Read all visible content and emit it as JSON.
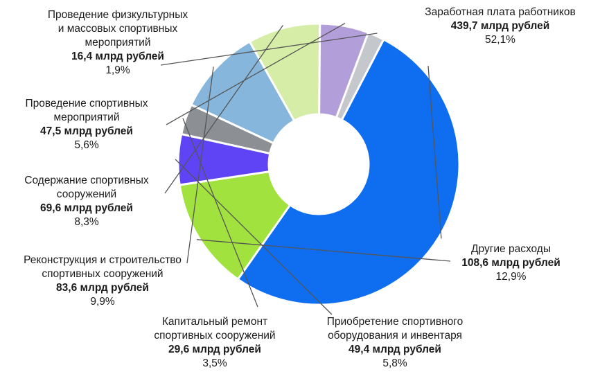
{
  "chart_data": {
    "type": "pie",
    "style": "donut",
    "start_angle_deg": -62.5,
    "direction": "clockwise",
    "slices": [
      {
        "name": "Заработная плата работников",
        "value": "439,7 млрд рублей",
        "percent": "52,1%",
        "pct_num": 52.1,
        "color": "#0f6ef0"
      },
      {
        "name": "Другие расходы",
        "value": "108,6 млрд рублей",
        "percent": "12,9%",
        "pct_num": 12.9,
        "color": "#a2e23e"
      },
      {
        "name": "Приобретение спортивного оборудования и инвентаря",
        "value": "49,4 млрд рублей",
        "percent": "5,8%",
        "pct_num": 5.8,
        "color": "#5e44f5"
      },
      {
        "name": "Капитальный ремонт спортивных сооружений",
        "value": "29,6 млрд рублей",
        "percent": "3,5%",
        "pct_num": 3.5,
        "color": "#8c8f93"
      },
      {
        "name": "Реконструкция и строительство спортивных сооружений",
        "value": "83,6 млрд рублей",
        "percent": "9,9%",
        "pct_num": 9.9,
        "color": "#86b6db"
      },
      {
        "name": "Содержание спортивных сооружений",
        "value": "69,6 млрд рублей",
        "percent": "8,3%",
        "pct_num": 8.3,
        "color": "#d5eda6"
      },
      {
        "name": "Проведение спортивных мероприятий",
        "value": "47,5 млрд рублей",
        "percent": "5,6%",
        "pct_num": 5.6,
        "color": "#b29ed8"
      },
      {
        "name": "Проведение физкультурных и массовых спортивных мероприятий",
        "value": "16,4 млрд рублей",
        "percent": "1,9%",
        "pct_num": 1.9,
        "color": "#c4c7cb"
      }
    ]
  },
  "labels": [
    {
      "name_lines": [
        "Заработная плата работников"
      ],
      "value": "439,7 млрд рублей",
      "percent": "52,1%"
    },
    {
      "name_lines": [
        "Другие расходы"
      ],
      "value": "108,6 млрд рублей",
      "percent": "12,9%"
    },
    {
      "name_lines": [
        "Приобретение спортивного",
        "оборудования и инвентаря"
      ],
      "value": "49,4 млрд рублей",
      "percent": "5,8%"
    },
    {
      "name_lines": [
        "Капитальный ремонт",
        "спортивных сооружений"
      ],
      "value": "29,6 млрд рублей",
      "percent": "3,5%"
    },
    {
      "name_lines": [
        "Реконструкция и строительство",
        "спортивных сооружений"
      ],
      "value": "83,6 млрд рублей",
      "percent": "9,9%"
    },
    {
      "name_lines": [
        "Содержание спортивных",
        "сооружений"
      ],
      "value": "69,6 млрд рублей",
      "percent": "8,3%"
    },
    {
      "name_lines": [
        "Проведение спортивных",
        "мероприятий"
      ],
      "value": "47,5 млрд рублей",
      "percent": "5,6%"
    },
    {
      "name_lines": [
        "Проведение физкультурных",
        "и массовых спортивных",
        "мероприятий"
      ],
      "value": "16,4 млрд рублей",
      "percent": "1,9%"
    }
  ]
}
